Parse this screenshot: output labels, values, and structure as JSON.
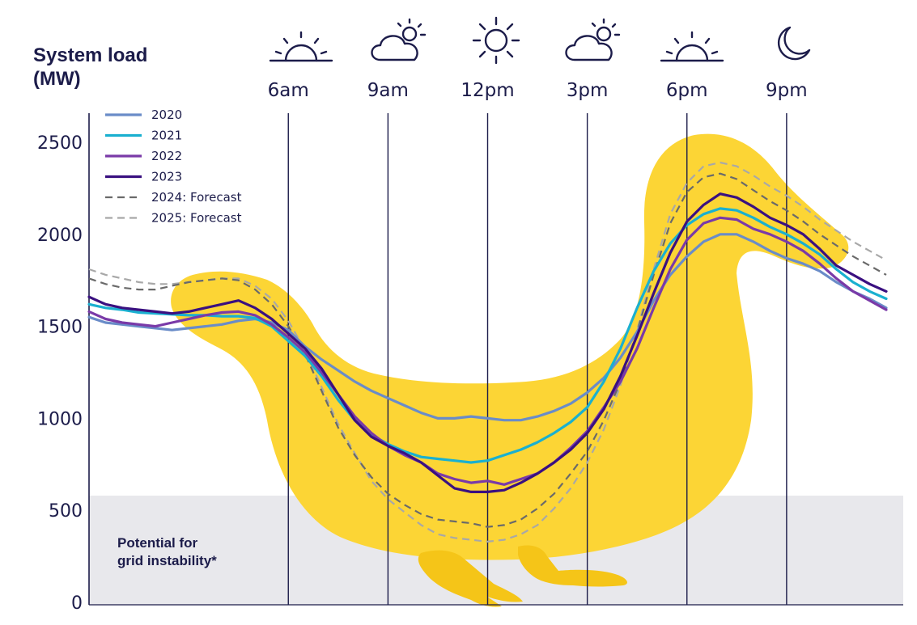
{
  "chart_data": {
    "type": "line",
    "title": "",
    "ylabel_lines": [
      "System load",
      "(MW)"
    ],
    "xlabel": "",
    "ylim": [
      0,
      2650
    ],
    "yticks": [
      0,
      500,
      1000,
      1500,
      2000,
      2500
    ],
    "time_markers": [
      {
        "label": "6am",
        "hour": 6,
        "icon": "sunrise-icon"
      },
      {
        "label": "9am",
        "hour": 9,
        "icon": "partly-cloudy-icon"
      },
      {
        "label": "12pm",
        "hour": 12,
        "icon": "sun-icon"
      },
      {
        "label": "3pm",
        "hour": 15,
        "icon": "partly-cloudy-icon"
      },
      {
        "label": "6pm",
        "hour": 18,
        "icon": "sunset-icon"
      },
      {
        "label": "9pm",
        "hour": 21,
        "icon": "moon-icon"
      }
    ],
    "x": [
      0,
      0.5,
      1,
      1.5,
      2,
      2.5,
      3,
      3.5,
      4,
      4.5,
      5,
      5.5,
      6,
      6.5,
      7,
      7.5,
      8,
      8.5,
      9,
      9.5,
      10,
      10.5,
      11,
      11.5,
      12,
      12.5,
      13,
      13.5,
      14,
      14.5,
      15,
      15.5,
      16,
      16.5,
      17,
      17.5,
      18,
      18.5,
      19,
      19.5,
      20,
      20.5,
      21,
      21.5,
      22,
      22.5,
      23,
      23.5,
      24
    ],
    "series": [
      {
        "name": "2020",
        "color": "#6a8cc8",
        "dash": "none",
        "values": [
          1550,
          1520,
          1510,
          1500,
          1490,
          1480,
          1490,
          1500,
          1510,
          1530,
          1540,
          1520,
          1480,
          1390,
          1320,
          1260,
          1200,
          1150,
          1110,
          1070,
          1030,
          1000,
          1000,
          1010,
          1000,
          990,
          990,
          1010,
          1040,
          1080,
          1140,
          1220,
          1330,
          1470,
          1640,
          1780,
          1880,
          1960,
          2000,
          2000,
          1960,
          1910,
          1870,
          1840,
          1800,
          1740,
          1690,
          1650,
          1600
        ]
      },
      {
        "name": "2021",
        "color": "#1ab0d0",
        "dash": "none",
        "values": [
          1620,
          1600,
          1590,
          1575,
          1570,
          1565,
          1560,
          1560,
          1555,
          1555,
          1545,
          1500,
          1420,
          1340,
          1230,
          1100,
          990,
          910,
          860,
          820,
          790,
          780,
          770,
          760,
          770,
          800,
          830,
          870,
          920,
          980,
          1060,
          1200,
          1380,
          1600,
          1800,
          1950,
          2050,
          2110,
          2140,
          2130,
          2090,
          2040,
          2000,
          1950,
          1890,
          1810,
          1740,
          1690,
          1650
        ]
      },
      {
        "name": "2022",
        "color": "#7a3aa8",
        "dash": "none",
        "values": [
          1580,
          1540,
          1520,
          1510,
          1500,
          1520,
          1540,
          1560,
          1575,
          1580,
          1560,
          1510,
          1440,
          1360,
          1250,
          1130,
          1010,
          920,
          850,
          800,
          760,
          700,
          670,
          650,
          660,
          640,
          670,
          700,
          760,
          840,
          930,
          1060,
          1200,
          1380,
          1600,
          1810,
          1970,
          2060,
          2090,
          2080,
          2030,
          2000,
          1960,
          1910,
          1840,
          1760,
          1690,
          1640,
          1590
        ]
      },
      {
        "name": "2023",
        "color": "#3a1080",
        "dash": "none",
        "values": [
          1660,
          1620,
          1600,
          1590,
          1580,
          1570,
          1580,
          1600,
          1620,
          1640,
          1600,
          1540,
          1460,
          1380,
          1270,
          1130,
          990,
          900,
          850,
          810,
          760,
          690,
          620,
          600,
          600,
          610,
          650,
          700,
          760,
          830,
          920,
          1050,
          1230,
          1450,
          1680,
          1900,
          2070,
          2160,
          2220,
          2200,
          2150,
          2090,
          2050,
          2000,
          1920,
          1830,
          1780,
          1730,
          1690
        ]
      },
      {
        "name": "2024: Forecast",
        "color": "#6a6a6a",
        "dash": "9 6",
        "values": [
          1760,
          1730,
          1710,
          1700,
          1700,
          1720,
          1740,
          1750,
          1760,
          1750,
          1700,
          1620,
          1500,
          1350,
          1150,
          950,
          800,
          680,
          590,
          530,
          480,
          450,
          440,
          430,
          410,
          420,
          450,
          510,
          590,
          700,
          820,
          990,
          1200,
          1470,
          1780,
          2060,
          2230,
          2310,
          2330,
          2300,
          2240,
          2180,
          2130,
          2070,
          2000,
          1940,
          1880,
          1830,
          1780
        ]
      },
      {
        "name": "2025: Forecast",
        "color": "#a8a8a8",
        "dash": "9 6",
        "values": [
          1810,
          1780,
          1760,
          1740,
          1730,
          1730,
          1740,
          1750,
          1760,
          1760,
          1720,
          1650,
          1530,
          1370,
          1170,
          970,
          810,
          660,
          560,
          490,
          420,
          370,
          350,
          340,
          330,
          340,
          370,
          420,
          510,
          620,
          760,
          940,
          1180,
          1480,
          1810,
          2110,
          2280,
          2370,
          2390,
          2370,
          2320,
          2260,
          2210,
          2150,
          2080,
          2020,
          1960,
          1910,
          1860
        ]
      }
    ],
    "instability_zone": {
      "label_lines": [
        "Potential for",
        "grid instability*"
      ],
      "from": 0,
      "to": 580
    },
    "colors": {
      "duck": "#fcd535",
      "zone": "#e8e8ec",
      "ink": "#1c1c4a",
      "gridline": "#1c1c4a"
    }
  }
}
